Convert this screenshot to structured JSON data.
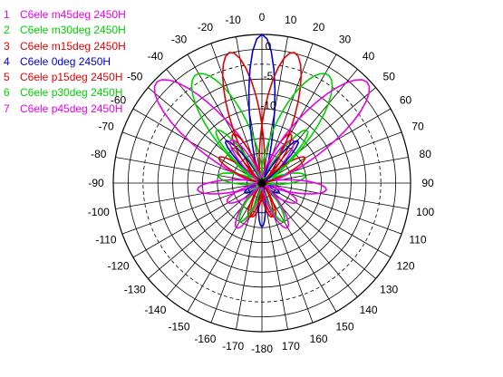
{
  "chart_data": {
    "type": "polar",
    "angle_unit": "deg",
    "angle_ticks": [
      0,
      10,
      20,
      30,
      40,
      50,
      60,
      70,
      80,
      90,
      100,
      110,
      120,
      130,
      140,
      150,
      160,
      170,
      180,
      -170,
      -160,
      -150,
      -140,
      -130,
      -120,
      -110,
      -100,
      -90,
      -80,
      -70,
      -60,
      -50,
      -40,
      -30,
      -20,
      -10
    ],
    "angle_tick_labels": [
      "0",
      "10",
      "20",
      "30",
      "40",
      "50",
      "60",
      "70",
      "80",
      "90",
      "100",
      "110",
      "120",
      "130",
      "140",
      "150",
      "160",
      "170",
      "-180",
      "-170",
      "-160",
      "-150",
      "-140",
      "-130",
      "-120",
      "-110",
      "-100",
      "-90",
      "-80",
      "-70",
      "-60",
      "-50",
      "-40",
      "-30",
      "-20",
      "-10"
    ],
    "radial_rings": 10,
    "radial_reference_ring": 8,
    "radial_labels": [
      {
        "value": "0",
        "angle": 0
      },
      {
        "value": "-5",
        "angle": 0
      },
      {
        "value": "-10",
        "angle": 0
      }
    ],
    "series": [
      {
        "name": "C6ele m45deg 2450H",
        "index": "1",
        "color": "#e800e8",
        "main_angle": -45,
        "main_width": 20,
        "side_lobes": [
          [
            -95,
            0.45,
            14
          ],
          [
            35,
            0.4,
            14
          ],
          [
            -150,
            0.35,
            16
          ],
          [
            120,
            0.3,
            16
          ]
        ]
      },
      {
        "name": "C6ele m30deg 2450H",
        "index": "2",
        "color": "#00d000",
        "main_angle": -30,
        "main_width": 18,
        "side_lobes": [
          [
            -80,
            0.35,
            14
          ],
          [
            40,
            0.5,
            12
          ],
          [
            -150,
            0.3,
            16
          ],
          [
            150,
            0.3,
            14
          ]
        ]
      },
      {
        "name": "C6ele m15deg 2450H",
        "index": "3",
        "color": "#e00000",
        "main_angle": -15,
        "main_width": 15,
        "side_lobes": [
          [
            -60,
            0.35,
            12
          ],
          [
            30,
            0.45,
            12
          ],
          [
            -165,
            0.25,
            15
          ],
          [
            160,
            0.25,
            14
          ]
        ]
      },
      {
        "name": "C6ele 0deg 2450H",
        "index": "4",
        "color": "#0000d0",
        "main_angle": 0,
        "main_width": 12,
        "side_lobes": [
          [
            -40,
            0.4,
            10
          ],
          [
            40,
            0.4,
            10
          ],
          [
            180,
            0.35,
            10
          ],
          [
            -120,
            0.15,
            14
          ],
          [
            120,
            0.15,
            14
          ]
        ]
      },
      {
        "name": "C6ele p15deg 2450H",
        "index": "5",
        "color": "#e00000",
        "main_angle": 15,
        "main_width": 15,
        "side_lobes": [
          [
            60,
            0.35,
            12
          ],
          [
            -30,
            0.45,
            12
          ],
          [
            165,
            0.25,
            15
          ],
          [
            -160,
            0.25,
            14
          ]
        ]
      },
      {
        "name": "C6ele p30deg 2450H",
        "index": "6",
        "color": "#00d000",
        "main_angle": 30,
        "main_width": 18,
        "side_lobes": [
          [
            80,
            0.35,
            14
          ],
          [
            -40,
            0.5,
            12
          ],
          [
            150,
            0.3,
            16
          ],
          [
            -150,
            0.3,
            14
          ]
        ]
      },
      {
        "name": "C6ele p45deg 2450H",
        "index": "7",
        "color": "#e800e8",
        "main_angle": 45,
        "main_width": 20,
        "side_lobes": [
          [
            95,
            0.45,
            14
          ],
          [
            -35,
            0.4,
            14
          ],
          [
            150,
            0.35,
            16
          ],
          [
            -120,
            0.3,
            16
          ]
        ]
      }
    ]
  }
}
